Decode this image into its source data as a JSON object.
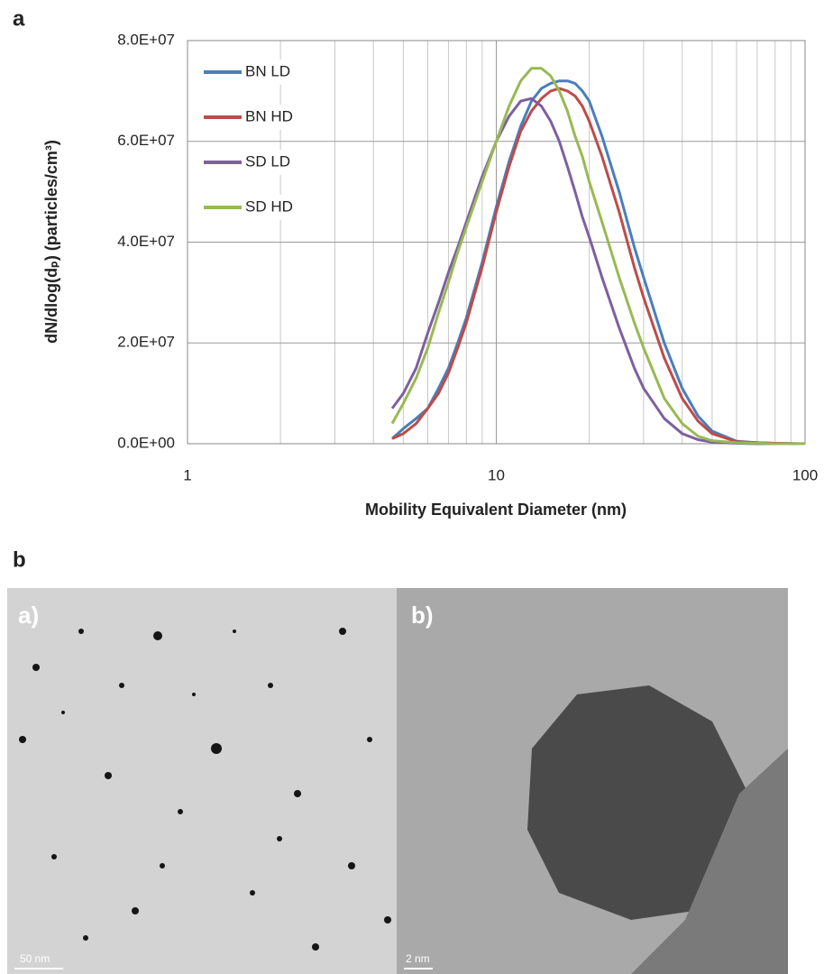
{
  "chart_data": {
    "type": "line",
    "panel_label": "a",
    "x_label": "Mobility Equivalent Diameter (nm)",
    "y_label": "dN/dlog(dₚ) (particles/cm³)",
    "log_x": true,
    "grid": true,
    "legend": "upper left",
    "xlim": [
      1,
      100
    ],
    "xticks": [
      1,
      10,
      100
    ],
    "ylim": [
      0,
      80000000
    ],
    "yticks": [
      {
        "value": 0,
        "label": "0.0E+00"
      },
      {
        "value": 20000000,
        "label": "2.0E+07"
      },
      {
        "value": 40000000,
        "label": "4.0E+07"
      },
      {
        "value": 60000000,
        "label": "6.0E+07"
      },
      {
        "value": 80000000,
        "label": "8.0E+07"
      }
    ],
    "x": [
      4.6,
      5,
      5.5,
      6,
      6.5,
      7,
      7.5,
      8,
      9,
      10,
      11,
      12,
      13,
      14,
      15,
      16,
      17,
      18,
      19,
      20,
      22,
      25,
      28,
      30,
      35,
      40,
      45,
      50,
      60,
      70,
      80,
      100
    ],
    "series": [
      {
        "name": "BN LD",
        "color": "#4a7ebb",
        "values": [
          1000000,
          3000000,
          5000000,
          7000000,
          11000000,
          15000000,
          20000000,
          25000000,
          36000000,
          47000000,
          56000000,
          63000000,
          68000000,
          70500000,
          71500000,
          72000000,
          72000000,
          71500000,
          70000000,
          68000000,
          61000000,
          50000000,
          39000000,
          33000000,
          20000000,
          11000000,
          5500000,
          2500000,
          500000,
          200000,
          100000,
          0
        ]
      },
      {
        "name": "BN HD",
        "color": "#be4b48",
        "values": [
          1000000,
          2000000,
          4000000,
          7000000,
          10000000,
          14000000,
          19000000,
          24000000,
          35000000,
          46000000,
          55000000,
          62000000,
          66000000,
          68500000,
          70000000,
          70500000,
          70000000,
          69000000,
          67000000,
          64000000,
          57000000,
          46000000,
          35000000,
          29000000,
          17000000,
          9000000,
          4500000,
          2000000,
          400000,
          200000,
          100000,
          0
        ]
      },
      {
        "name": "SD LD",
        "color": "#7e5fa0",
        "values": [
          7000000,
          10000000,
          15000000,
          22000000,
          28000000,
          34000000,
          39000000,
          44000000,
          53000000,
          60000000,
          65000000,
          68000000,
          68500000,
          67000000,
          64000000,
          60000000,
          55000000,
          50000000,
          45000000,
          41000000,
          33000000,
          23000000,
          15000000,
          11000000,
          5000000,
          2000000,
          800000,
          300000,
          100000,
          0,
          0,
          0
        ]
      },
      {
        "name": "SD HD",
        "color": "#98b954",
        "values": [
          4000000,
          8000000,
          13000000,
          19000000,
          26000000,
          32000000,
          38000000,
          43000000,
          52000000,
          60000000,
          67000000,
          72000000,
          74500000,
          74500000,
          73000000,
          70000000,
          66000000,
          61000000,
          57000000,
          52000000,
          44000000,
          33000000,
          24000000,
          19000000,
          9000000,
          4000000,
          1500000,
          600000,
          200000,
          100000,
          0,
          0
        ]
      }
    ]
  },
  "figure_b": {
    "panel_label": "b",
    "left_label": "a)",
    "right_label": "b)",
    "left_scale": "50 nm",
    "right_scale": "2 nm"
  }
}
